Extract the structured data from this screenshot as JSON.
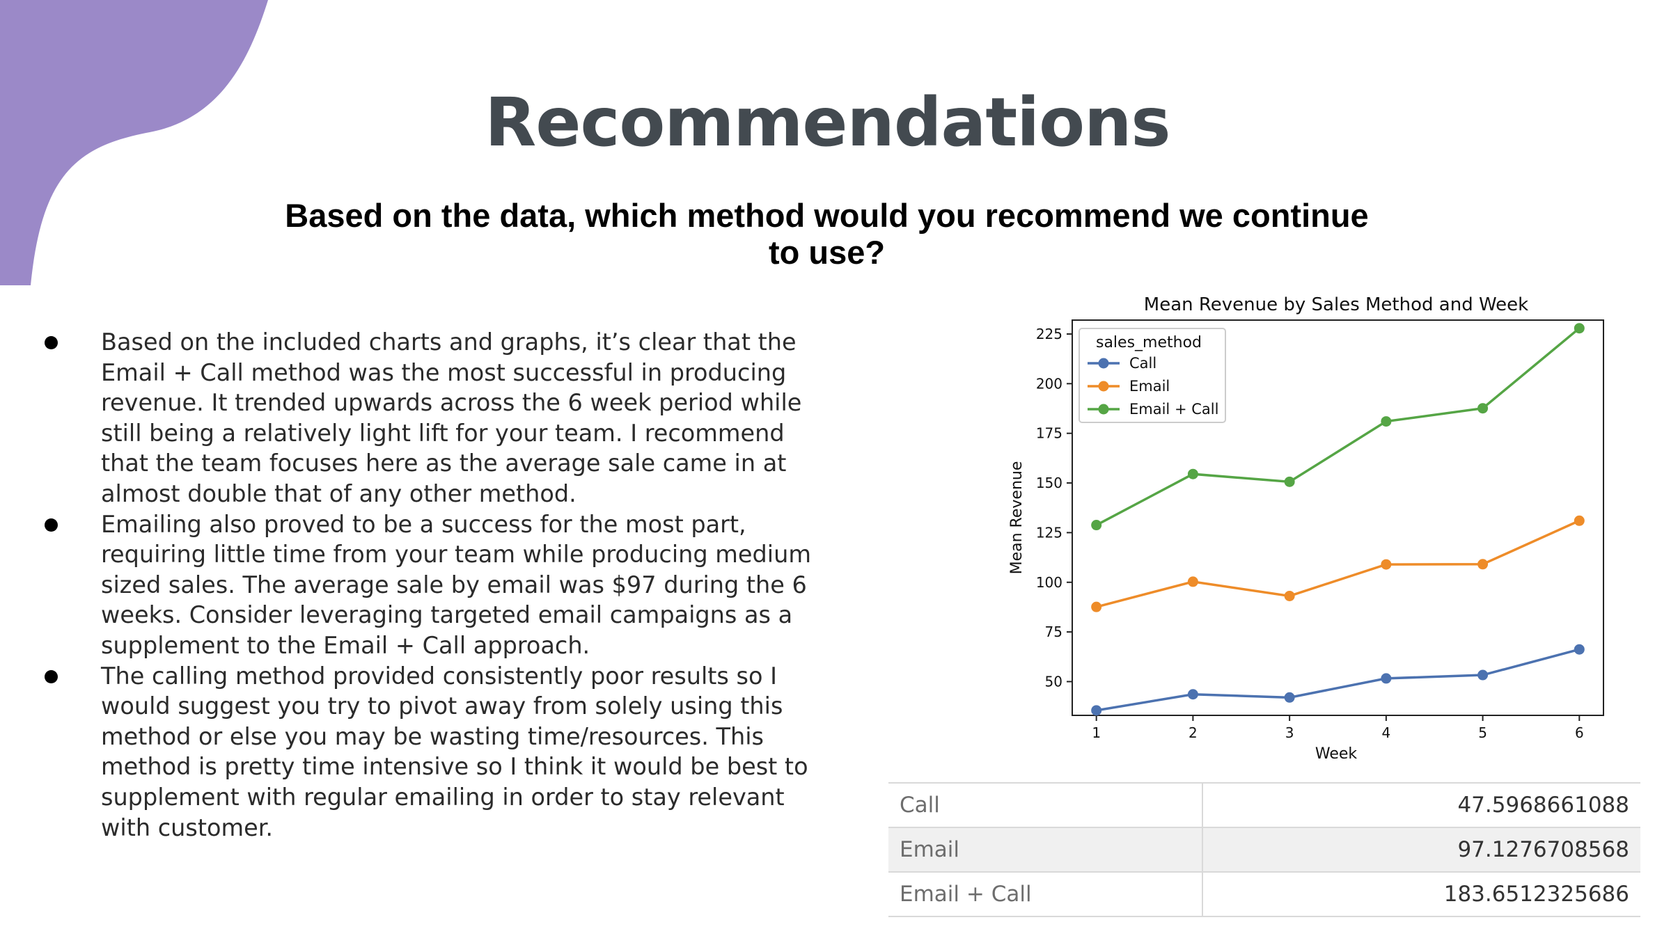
{
  "slide": {
    "title": "Recommendations",
    "question": "Based on the data, which method would you recommend we continue to use?",
    "accent_color": "#9b89c8",
    "bullets": [
      "Based on the included charts and graphs, it’s clear that the Email + Call method was the most successful in producing revenue. It trended upwards across the 6 week period while still being a relatively light lift for your team. I recommend that the team focuses here as the average sale came in at almost double that of any other method.",
      "Emailing also proved to be a success for the most part, requiring little time from your team while producing medium sized sales. The average sale by email was $97 during the 6 weeks. Consider leveraging targeted email campaigns as a supplement to the Email + Call approach.",
      "The calling method provided consistently poor results so I would suggest you try to pivot away from solely using this method or else you may be wasting time/resources. This method is pretty time intensive so I think it would be best to supplement with regular emailing in order to stay relevant with customer."
    ]
  },
  "chart_data": {
    "type": "line",
    "title": "Mean Revenue by Sales Method and Week",
    "xlabel": "Week",
    "ylabel": "Mean Revenue",
    "x": [
      1,
      2,
      3,
      4,
      5,
      6
    ],
    "xlim": [
      0.75,
      6.25
    ],
    "ylim": [
      33,
      232
    ],
    "yticks": [
      50,
      75,
      100,
      125,
      150,
      175,
      200,
      225
    ],
    "legend_title": "sales_method",
    "legend_position": "upper-left",
    "series": [
      {
        "name": "Call",
        "color": "#4c72b0",
        "values": [
          35.5,
          43.6,
          42.0,
          51.6,
          53.3,
          66.2
        ]
      },
      {
        "name": "Email",
        "color": "#ee8c29",
        "values": [
          87.6,
          100.3,
          93.1,
          109.0,
          109.1,
          131.0
        ]
      },
      {
        "name": "Email + Call",
        "color": "#55a545",
        "values": [
          128.8,
          154.5,
          150.6,
          181.0,
          187.6,
          227.9
        ]
      }
    ]
  },
  "summary_table": {
    "rows": [
      {
        "label": "Call",
        "value": "47.5968661088"
      },
      {
        "label": "Email",
        "value": "97.1276708568"
      },
      {
        "label": "Email + Call",
        "value": "183.6512325686"
      }
    ]
  }
}
